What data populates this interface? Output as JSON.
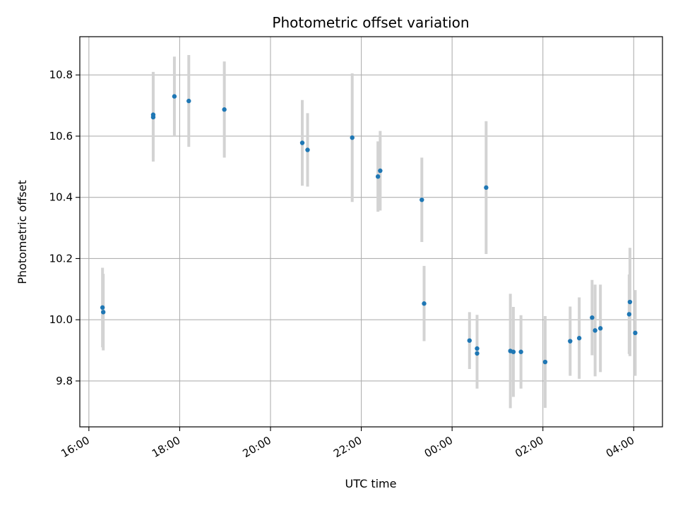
{
  "chart_data": {
    "type": "scatter",
    "title": "Photometric offset variation",
    "xlabel": "UTC time",
    "ylabel": "Photometric offset",
    "x_scale": "time",
    "x_units": "hours UTC, continuing past midnight",
    "xlim": [
      "15:48",
      "04:38"
    ],
    "ylim": [
      9.65,
      10.925
    ],
    "xticks": [
      "16:00",
      "18:00",
      "20:00",
      "22:00",
      "00:00",
      "02:00",
      "04:00"
    ],
    "yticks": [
      "9.8",
      "10.0",
      "10.2",
      "10.4",
      "10.6",
      "10.8"
    ],
    "grid": true,
    "colors": {
      "point": "#1f77b4",
      "errorbar": "#d3d3d3",
      "grid": "#b0b0b0"
    },
    "points": [
      {
        "x": "16:18",
        "y": 10.04,
        "err": 0.13
      },
      {
        "x": "16:19",
        "y": 10.025,
        "err": 0.125
      },
      {
        "x": "17:25",
        "y": 10.67,
        "err": 0.14
      },
      {
        "x": "17:25",
        "y": 10.662,
        "err": 0.145
      },
      {
        "x": "17:53",
        "y": 10.73,
        "err": 0.13
      },
      {
        "x": "18:12",
        "y": 10.715,
        "err": 0.15
      },
      {
        "x": "18:59",
        "y": 10.687,
        "err": 0.157
      },
      {
        "x": "20:42",
        "y": 10.578,
        "err": 0.14
      },
      {
        "x": "20:49",
        "y": 10.555,
        "err": 0.12
      },
      {
        "x": "21:48",
        "y": 10.595,
        "err": 0.21
      },
      {
        "x": "22:22",
        "y": 10.468,
        "err": 0.115
      },
      {
        "x": "22:25",
        "y": 10.487,
        "err": 0.13
      },
      {
        "x": "23:20",
        "y": 10.392,
        "err": 0.138
      },
      {
        "x": "23:23",
        "y": 10.053,
        "err": 0.123
      },
      {
        "x": "00:23",
        "y": 9.932,
        "err": 0.093
      },
      {
        "x": "00:33",
        "y": 9.906,
        "err": 0.11
      },
      {
        "x": "00:33",
        "y": 9.89,
        "err": 0.115
      },
      {
        "x": "00:45",
        "y": 10.432,
        "err": 0.217
      },
      {
        "x": "01:17",
        "y": 9.898,
        "err": 0.187
      },
      {
        "x": "01:21",
        "y": 9.895,
        "err": 0.147
      },
      {
        "x": "01:31",
        "y": 9.895,
        "err": 0.12
      },
      {
        "x": "02:03",
        "y": 9.862,
        "err": 0.15
      },
      {
        "x": "02:36",
        "y": 9.93,
        "err": 0.113
      },
      {
        "x": "02:48",
        "y": 9.94,
        "err": 0.133
      },
      {
        "x": "03:05",
        "y": 10.007,
        "err": 0.123
      },
      {
        "x": "03:09",
        "y": 9.965,
        "err": 0.15
      },
      {
        "x": "03:16",
        "y": 9.972,
        "err": 0.143
      },
      {
        "x": "03:54",
        "y": 10.018,
        "err": 0.13
      },
      {
        "x": "03:55",
        "y": 10.058,
        "err": 0.177
      },
      {
        "x": "04:02",
        "y": 9.957,
        "err": 0.14
      }
    ]
  }
}
